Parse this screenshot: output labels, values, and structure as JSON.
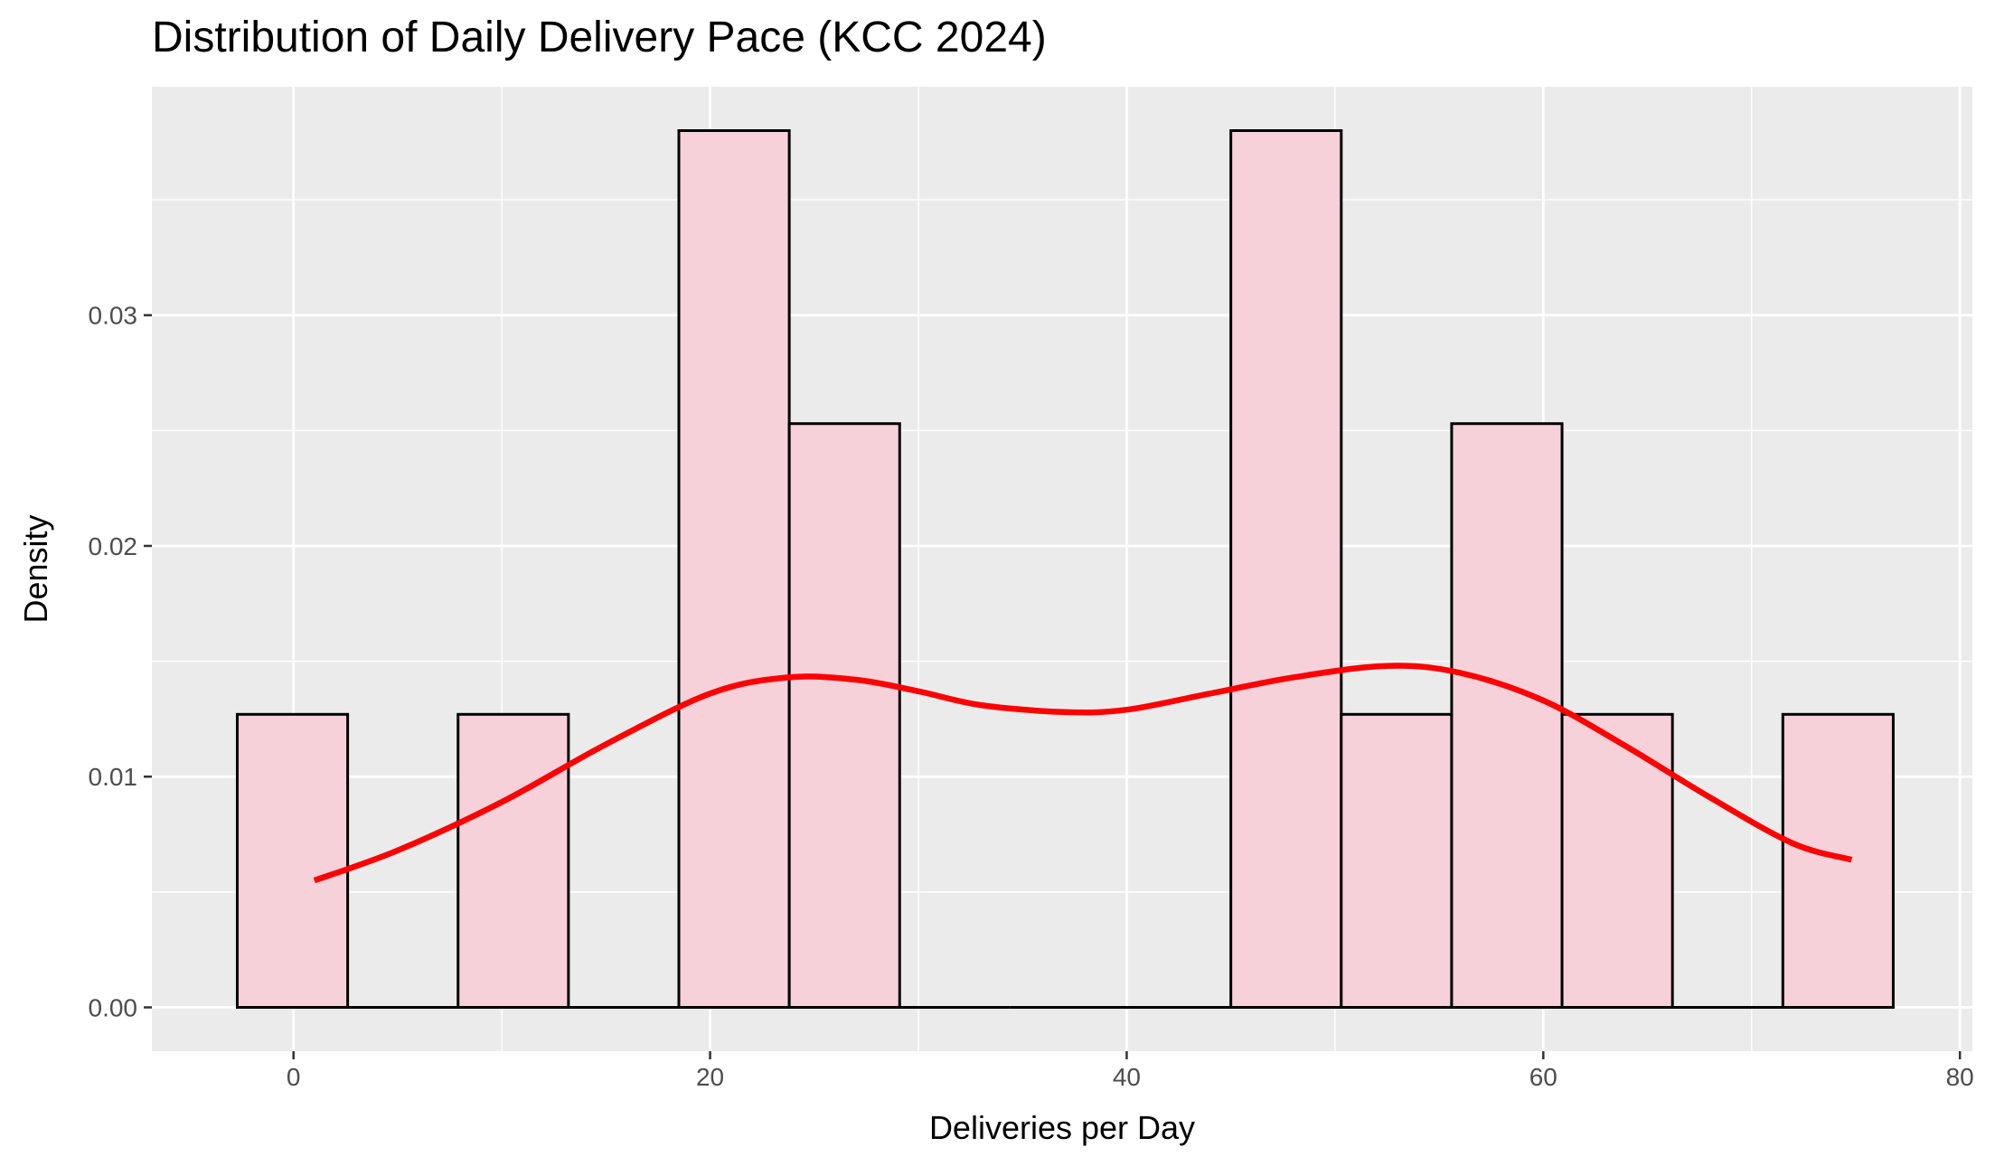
{
  "chart_data": {
    "type": "histogram",
    "title": "Distribution of Daily Delivery Pace (KCC 2024)",
    "xlabel": "Deliveries per Day",
    "ylabel": "Density",
    "xlim": [
      -6.8,
      80.6
    ],
    "ylim": [
      -0.0019,
      0.0399
    ],
    "x_ticks": [
      0,
      20,
      40,
      60,
      80
    ],
    "y_ticks": [
      0.0,
      0.01,
      0.02,
      0.03
    ],
    "x_tick_labels": [
      "0",
      "20",
      "40",
      "60",
      "80"
    ],
    "y_tick_labels": [
      "0.00",
      "0.01",
      "0.02",
      "0.03"
    ],
    "bin_edges": [
      -2.7,
      2.6,
      7.9,
      13.2,
      18.5,
      23.8,
      29.1,
      34.4,
      39.7,
      45.0,
      50.3,
      55.6,
      60.9,
      66.2,
      71.5,
      76.8
    ],
    "densities": [
      0.0127,
      0,
      0.0127,
      0,
      0.038,
      0.0253,
      0,
      0,
      0,
      0.038,
      0.0127,
      0.0253,
      0.0127,
      0,
      0.0127
    ],
    "density_curve": {
      "x": [
        1,
        5,
        10,
        15,
        20,
        23.7,
        27,
        30,
        33,
        37,
        40,
        44,
        48,
        52.5,
        56,
        60,
        64,
        68,
        72,
        74.8
      ],
      "y": [
        0.0055,
        0.0068,
        0.0089,
        0.0114,
        0.0136,
        0.0143,
        0.0142,
        0.0137,
        0.0131,
        0.0128,
        0.0129,
        0.0136,
        0.0143,
        0.0148,
        0.0145,
        0.0133,
        0.0113,
        0.0091,
        0.0071,
        0.0064
      ]
    },
    "bar_fill": "#f6d1da",
    "bar_stroke": "#000000",
    "curve_color": "#ff0000",
    "panel_background": "#ebebeb",
    "grid": true,
    "legend": "none"
  }
}
